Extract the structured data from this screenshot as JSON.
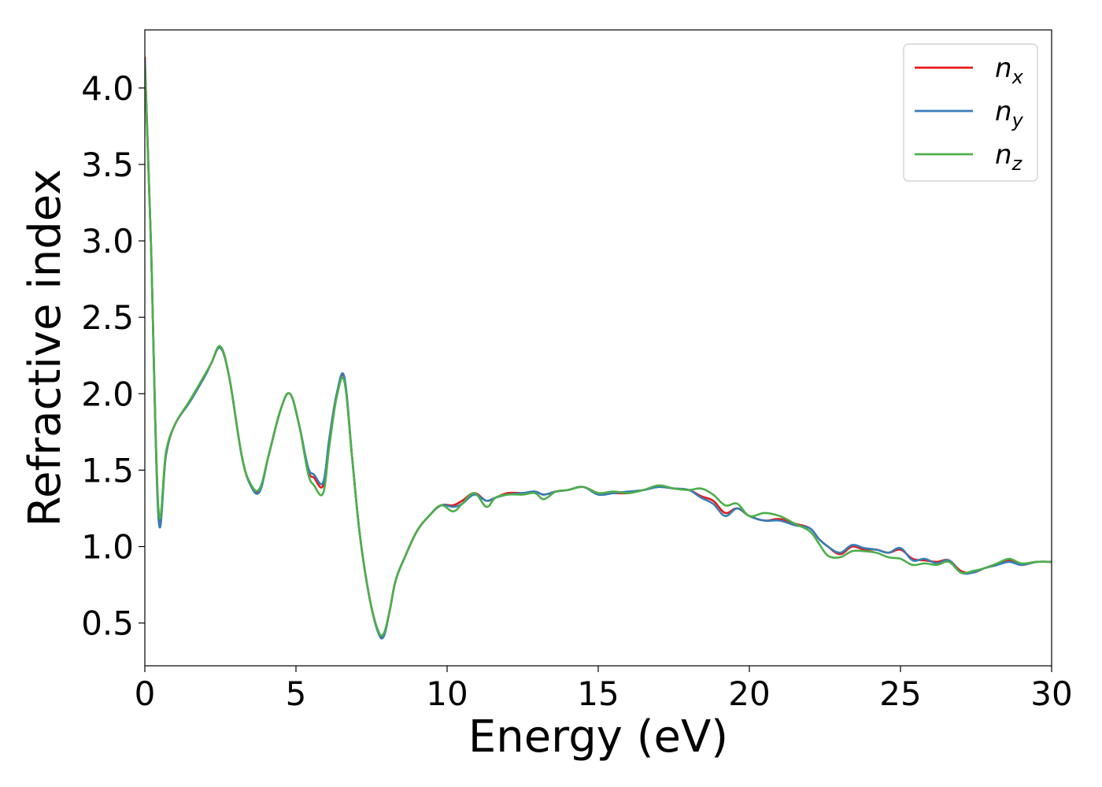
{
  "chart_data": {
    "type": "line",
    "xlabel": "Energy (eV)",
    "ylabel": "Refractive index",
    "xlim": [
      0,
      30
    ],
    "ylim": [
      0.22,
      4.38
    ],
    "xticks": [
      0,
      5,
      10,
      15,
      20,
      25,
      30
    ],
    "xtick_labels": [
      "0",
      "5",
      "10",
      "15",
      "20",
      "25",
      "30"
    ],
    "yticks": [
      0.5,
      1.0,
      1.5,
      2.0,
      2.5,
      3.0,
      3.5,
      4.0
    ],
    "ytick_labels": [
      "0.5",
      "1.0",
      "1.5",
      "2.0",
      "2.5",
      "3.0",
      "3.5",
      "4.0"
    ],
    "grid": false,
    "legend_position": "top-right",
    "series": [
      {
        "name": "n",
        "subscript": "x",
        "color": "#e41a1c",
        "x": [
          0,
          0.2,
          0.45,
          0.7,
          1.0,
          1.5,
          2.0,
          2.2,
          2.5,
          2.8,
          3.2,
          3.5,
          3.8,
          4.1,
          4.5,
          4.8,
          5.1,
          5.4,
          5.6,
          5.9,
          6.1,
          6.35,
          6.6,
          6.85,
          7.1,
          7.4,
          7.7,
          7.9,
          8.1,
          8.3,
          8.6,
          9.0,
          9.4,
          9.8,
          10.2,
          10.5,
          10.9,
          11.3,
          11.6,
          12.0,
          12.5,
          12.9,
          13.2,
          13.6,
          14.0,
          14.5,
          15.0,
          15.5,
          16.0,
          16.5,
          17.0,
          17.5,
          18.0,
          18.4,
          18.8,
          19.2,
          19.6,
          20.0,
          20.5,
          21.0,
          21.5,
          22.0,
          22.3,
          22.6,
          23.0,
          23.4,
          23.8,
          24.2,
          24.6,
          25.0,
          25.4,
          25.8,
          26.2,
          26.6,
          27.0,
          27.4,
          27.8,
          28.2,
          28.6,
          29.0,
          29.5,
          30.0
        ],
        "y": [
          4.2,
          3.0,
          1.22,
          1.6,
          1.8,
          1.95,
          2.12,
          2.2,
          2.3,
          2.1,
          1.6,
          1.4,
          1.37,
          1.6,
          1.9,
          2.0,
          1.8,
          1.5,
          1.45,
          1.4,
          1.7,
          2.0,
          2.1,
          1.6,
          1.1,
          0.7,
          0.45,
          0.42,
          0.58,
          0.78,
          0.93,
          1.1,
          1.2,
          1.27,
          1.27,
          1.3,
          1.35,
          1.3,
          1.32,
          1.35,
          1.35,
          1.36,
          1.34,
          1.36,
          1.37,
          1.39,
          1.35,
          1.35,
          1.35,
          1.37,
          1.39,
          1.38,
          1.37,
          1.33,
          1.3,
          1.22,
          1.25,
          1.2,
          1.17,
          1.18,
          1.15,
          1.12,
          1.05,
          1.0,
          0.95,
          1.0,
          0.98,
          0.98,
          0.96,
          0.98,
          0.92,
          0.91,
          0.9,
          0.91,
          0.84,
          0.83,
          0.86,
          0.88,
          0.91,
          0.88,
          0.9,
          0.9
        ]
      },
      {
        "name": "n",
        "subscript": "y",
        "color": "#377eb8",
        "x": [
          0,
          0.2,
          0.45,
          0.7,
          1.0,
          1.5,
          2.0,
          2.2,
          2.5,
          2.8,
          3.2,
          3.5,
          3.8,
          4.1,
          4.5,
          4.8,
          5.1,
          5.4,
          5.6,
          5.9,
          6.1,
          6.35,
          6.6,
          6.85,
          7.1,
          7.4,
          7.7,
          7.9,
          8.1,
          8.3,
          8.6,
          9.0,
          9.4,
          9.8,
          10.2,
          10.5,
          10.9,
          11.3,
          11.6,
          12.0,
          12.5,
          12.9,
          13.2,
          13.6,
          14.0,
          14.5,
          15.0,
          15.5,
          16.0,
          16.5,
          17.0,
          17.5,
          18.0,
          18.4,
          18.8,
          19.2,
          19.6,
          20.0,
          20.5,
          21.0,
          21.5,
          22.0,
          22.3,
          22.6,
          23.0,
          23.4,
          23.8,
          24.2,
          24.6,
          25.0,
          25.4,
          25.8,
          26.2,
          26.6,
          27.0,
          27.4,
          27.8,
          28.2,
          28.6,
          29.0,
          29.5,
          30.0
        ],
        "y": [
          4.18,
          3.0,
          1.19,
          1.6,
          1.8,
          1.95,
          2.12,
          2.2,
          2.3,
          2.1,
          1.6,
          1.4,
          1.36,
          1.6,
          1.9,
          2.0,
          1.8,
          1.52,
          1.47,
          1.42,
          1.7,
          2.0,
          2.11,
          1.6,
          1.1,
          0.7,
          0.45,
          0.41,
          0.58,
          0.78,
          0.93,
          1.1,
          1.2,
          1.27,
          1.26,
          1.28,
          1.34,
          1.3,
          1.32,
          1.34,
          1.35,
          1.36,
          1.34,
          1.36,
          1.37,
          1.39,
          1.34,
          1.35,
          1.36,
          1.37,
          1.39,
          1.38,
          1.37,
          1.32,
          1.28,
          1.2,
          1.25,
          1.2,
          1.17,
          1.17,
          1.14,
          1.12,
          1.05,
          1.0,
          0.96,
          1.01,
          0.99,
          0.98,
          0.96,
          0.99,
          0.91,
          0.92,
          0.89,
          0.91,
          0.83,
          0.83,
          0.86,
          0.88,
          0.9,
          0.88,
          0.9,
          0.9
        ]
      },
      {
        "name": "n",
        "subscript": "z",
        "color": "#4daf4a",
        "x": [
          0,
          0.2,
          0.45,
          0.7,
          1.0,
          1.5,
          2.0,
          2.2,
          2.5,
          2.8,
          3.2,
          3.5,
          3.8,
          4.1,
          4.5,
          4.8,
          5.1,
          5.4,
          5.6,
          5.9,
          6.1,
          6.35,
          6.6,
          6.85,
          7.1,
          7.4,
          7.7,
          7.9,
          8.1,
          8.3,
          8.6,
          9.0,
          9.4,
          9.8,
          10.2,
          10.5,
          10.9,
          11.3,
          11.6,
          12.0,
          12.5,
          12.9,
          13.2,
          13.6,
          14.0,
          14.5,
          15.0,
          15.5,
          16.0,
          16.5,
          17.0,
          17.5,
          18.0,
          18.4,
          18.8,
          19.2,
          19.6,
          20.0,
          20.5,
          21.0,
          21.5,
          22.0,
          22.3,
          22.6,
          23.0,
          23.4,
          23.8,
          24.2,
          24.6,
          25.0,
          25.4,
          25.8,
          26.2,
          26.6,
          27.0,
          27.4,
          27.8,
          28.2,
          28.6,
          29.0,
          29.5,
          30.0
        ],
        "y": [
          4.15,
          3.0,
          1.25,
          1.62,
          1.8,
          1.96,
          2.13,
          2.2,
          2.31,
          2.1,
          1.6,
          1.41,
          1.38,
          1.6,
          1.9,
          2.0,
          1.8,
          1.48,
          1.4,
          1.35,
          1.65,
          1.98,
          2.08,
          1.6,
          1.1,
          0.7,
          0.46,
          0.43,
          0.58,
          0.78,
          0.93,
          1.1,
          1.2,
          1.27,
          1.23,
          1.28,
          1.35,
          1.26,
          1.32,
          1.34,
          1.34,
          1.35,
          1.31,
          1.36,
          1.37,
          1.39,
          1.35,
          1.36,
          1.35,
          1.37,
          1.4,
          1.38,
          1.37,
          1.38,
          1.34,
          1.27,
          1.28,
          1.2,
          1.22,
          1.2,
          1.15,
          1.1,
          1.02,
          0.94,
          0.93,
          0.97,
          0.97,
          0.96,
          0.93,
          0.92,
          0.88,
          0.89,
          0.88,
          0.9,
          0.83,
          0.84,
          0.86,
          0.89,
          0.92,
          0.89,
          0.9,
          0.9
        ]
      }
    ]
  }
}
